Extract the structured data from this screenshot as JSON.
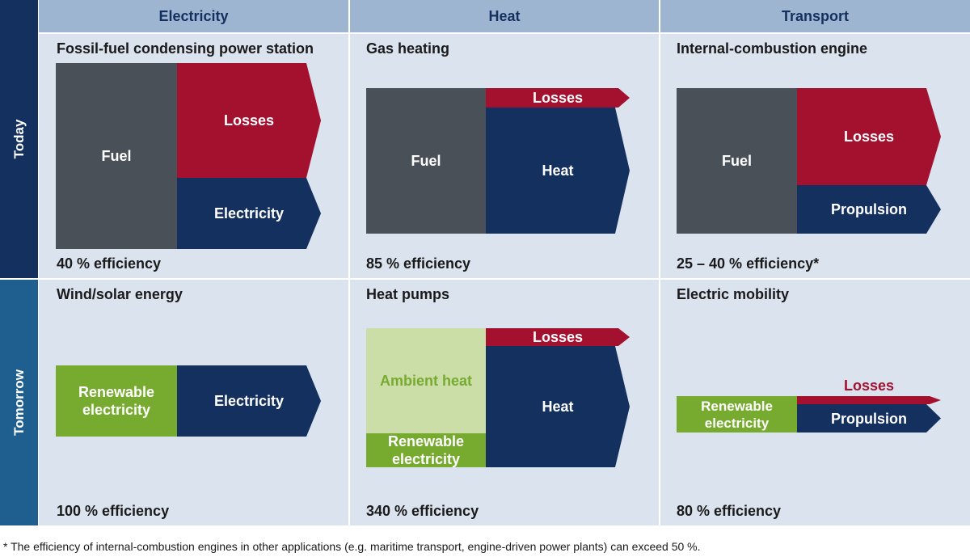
{
  "columns": {
    "electricity": "Electricity",
    "heat": "Heat",
    "transport": "Transport"
  },
  "rows": {
    "today": "Today",
    "tomorrow": "Tomorrow"
  },
  "cells": {
    "today_electricity": {
      "title": "Fossil-fuel condensing power station",
      "fuel": "Fuel",
      "losses": "Losses",
      "output": "Electricity",
      "efficiency": "40 % efficiency"
    },
    "today_heat": {
      "title": "Gas heating",
      "fuel": "Fuel",
      "losses": "Losses",
      "output": "Heat",
      "efficiency": "85 % efficiency"
    },
    "today_transport": {
      "title": "Internal-combustion engine",
      "fuel": "Fuel",
      "losses": "Losses",
      "output": "Propulsion",
      "efficiency": "25 – 40 % efficiency*"
    },
    "tomorrow_electricity": {
      "title": "Wind/solar energy",
      "input": "Renewable electricity",
      "output": "Electricity",
      "efficiency": "100 % efficiency"
    },
    "tomorrow_heat": {
      "title": "Heat pumps",
      "ambient": "Ambient heat",
      "input": "Renewable electricity",
      "losses": "Losses",
      "output": "Heat",
      "efficiency": "340 % efficiency"
    },
    "tomorrow_transport": {
      "title": "Electric mobility",
      "input": "Renewable electricity",
      "losses": "Losses",
      "output": "Propulsion",
      "efficiency": "80 % efficiency"
    }
  },
  "footnote": "* The efficiency of internal-combustion engines in other applications (e.g. maritime transport, engine-driven power plants) can exceed 50 %.",
  "colors": {
    "fuel": "#4a5058",
    "losses": "#a3112f",
    "output": "#14305e",
    "renewable": "#76ab2f",
    "ambient": "#cbdea8",
    "cell_background": "#dae3ee",
    "header_background": "#9eb5d1",
    "today_label": "#14305e",
    "tomorrow_label": "#1e5f8f"
  }
}
